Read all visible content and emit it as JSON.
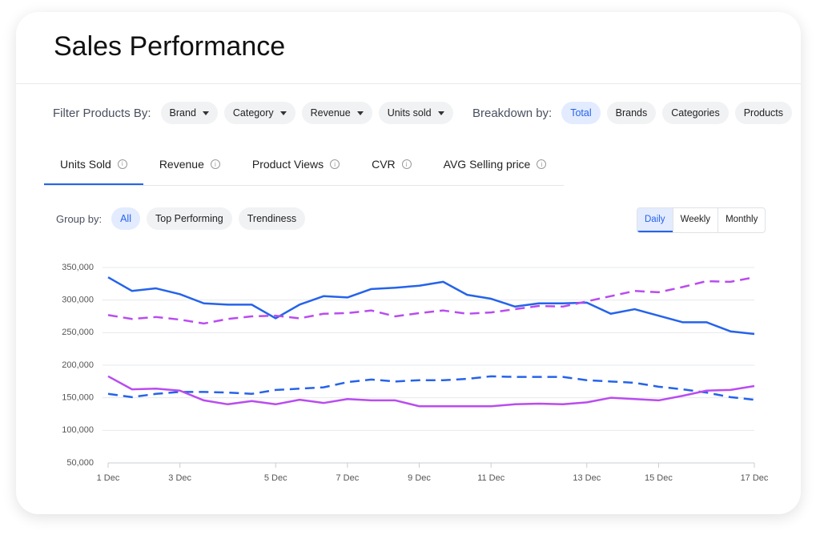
{
  "header": {
    "title": "Sales Performance"
  },
  "filters": {
    "label": "Filter Products By:",
    "options": [
      "Brand",
      "Category",
      "Revenue",
      "Units sold"
    ]
  },
  "breakdown": {
    "label": "Breakdown by:",
    "options": [
      "Total",
      "Brands",
      "Categories",
      "Products"
    ],
    "selected": 0
  },
  "tabs": {
    "items": [
      "Units Sold",
      "Revenue",
      "Product Views",
      "CVR",
      "AVG Selling price"
    ],
    "selected": 0
  },
  "group_by": {
    "label": "Group by:",
    "options": [
      "All",
      "Top Performing",
      "Trendiness"
    ],
    "selected": 0
  },
  "period": {
    "options": [
      "Daily",
      "Weekly",
      "Monthly"
    ],
    "selected": 0
  },
  "chart_data": {
    "type": "line",
    "categories": [
      "1 Dec",
      null,
      null,
      "3 Dec",
      null,
      null,
      null,
      "5 Dec",
      null,
      null,
      "7 Dec",
      null,
      null,
      "9 Dec",
      null,
      null,
      "11 Dec",
      null,
      null,
      null,
      "13 Dec",
      null,
      null,
      "15 Dec",
      null,
      null,
      null,
      "17 Dec"
    ],
    "series": [
      {
        "color": "#2563eb",
        "style": "solid",
        "values": [
          335000,
          314000,
          318000,
          309000,
          295000,
          293000,
          293000,
          272000,
          293000,
          306000,
          304000,
          317000,
          319000,
          322000,
          328000,
          308000,
          302000,
          290000,
          295000,
          295000,
          296000,
          279000,
          286000,
          276000,
          266000,
          266000,
          252000,
          248000
        ]
      },
      {
        "color": "#b94cf0",
        "style": "dashed",
        "values": [
          277000,
          271000,
          274000,
          270000,
          264000,
          271000,
          275000,
          276000,
          272000,
          279000,
          280000,
          284000,
          275000,
          280000,
          284000,
          279000,
          281000,
          286000,
          291000,
          290000,
          298000,
          306000,
          314000,
          312000,
          320000,
          329000,
          328000,
          335000
        ]
      },
      {
        "color": "#2563eb",
        "style": "dashed",
        "values": [
          156000,
          151000,
          156000,
          159000,
          159000,
          158000,
          156000,
          162000,
          164000,
          166000,
          174000,
          178000,
          175000,
          177000,
          177000,
          179000,
          183000,
          182000,
          182000,
          182000,
          177000,
          175000,
          173000,
          167000,
          163000,
          158000,
          151000,
          147000
        ]
      },
      {
        "color": "#b94cf0",
        "style": "solid",
        "values": [
          183000,
          163000,
          164000,
          161000,
          146000,
          140000,
          145000,
          140000,
          147000,
          142000,
          148000,
          146000,
          146000,
          137000,
          137000,
          137000,
          137000,
          140000,
          141000,
          140000,
          143000,
          150000,
          148000,
          146000,
          153000,
          161000,
          162000,
          168000
        ]
      }
    ],
    "ylim": [
      50000,
      350000
    ],
    "yticks": [
      {
        "value": 50000,
        "label": "50,000"
      },
      {
        "value": 100000,
        "label": "100,000"
      },
      {
        "value": 150000,
        "label": "150,000"
      },
      {
        "value": 200000,
        "label": "200,000"
      },
      {
        "value": 250000,
        "label": "250,000"
      },
      {
        "value": 300000,
        "label": "300,000"
      },
      {
        "value": 350000,
        "label": "350,000"
      }
    ],
    "grid": true
  }
}
